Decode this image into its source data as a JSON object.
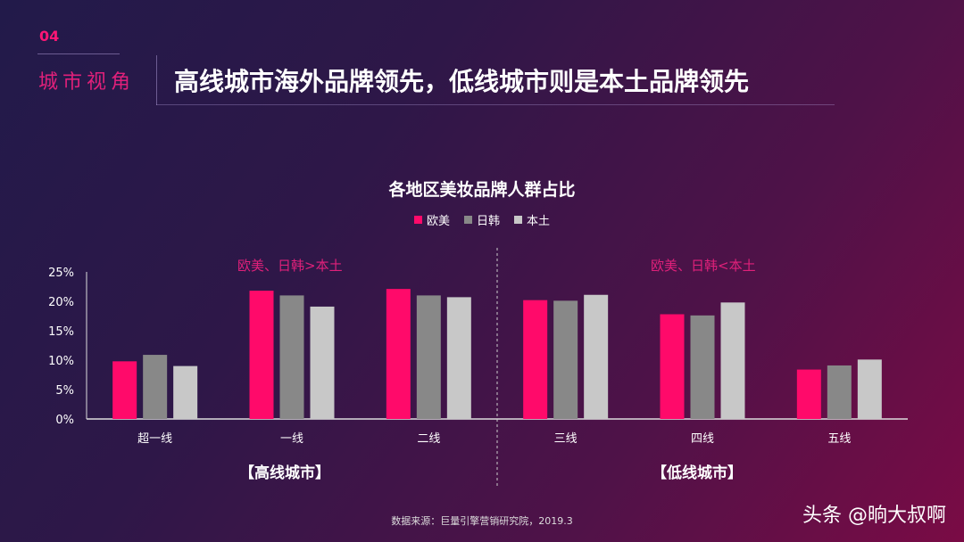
{
  "header": {
    "number": "04",
    "section": "城市视角",
    "title": "高线城市海外品牌领先，低线城市则是本土品牌领先"
  },
  "chart_data": {
    "type": "bar",
    "title": "各地区美妆品牌人群占比",
    "categories": [
      "超一线",
      "一线",
      "二线",
      "三线",
      "四线",
      "五线"
    ],
    "series": [
      {
        "name": "欧美",
        "color": "#ff0a6a",
        "values": [
          9.8,
          21.8,
          22.1,
          20.2,
          17.8,
          8.4
        ]
      },
      {
        "name": "日韩",
        "color": "#888888",
        "values": [
          10.9,
          21.0,
          21.0,
          20.1,
          17.6,
          9.1
        ]
      },
      {
        "name": "本土",
        "color": "#c8c8c8",
        "values": [
          9.0,
          19.1,
          20.7,
          21.1,
          19.8,
          10.1
        ]
      }
    ],
    "yticks": [
      "0%",
      "5%",
      "10%",
      "15%",
      "20%",
      "25%"
    ],
    "ylim": [
      0,
      25
    ],
    "legend": "top",
    "grid": false,
    "annotations": [
      "欧美、日韩>本土",
      "欧美、日韩<本土"
    ],
    "groups": [
      "【高线城市】",
      "【低线城市】"
    ]
  },
  "footer": {
    "source": "数据来源：巨量引擎营销研究院，2019.3",
    "watermark": "头条 @晌大叔啊"
  }
}
